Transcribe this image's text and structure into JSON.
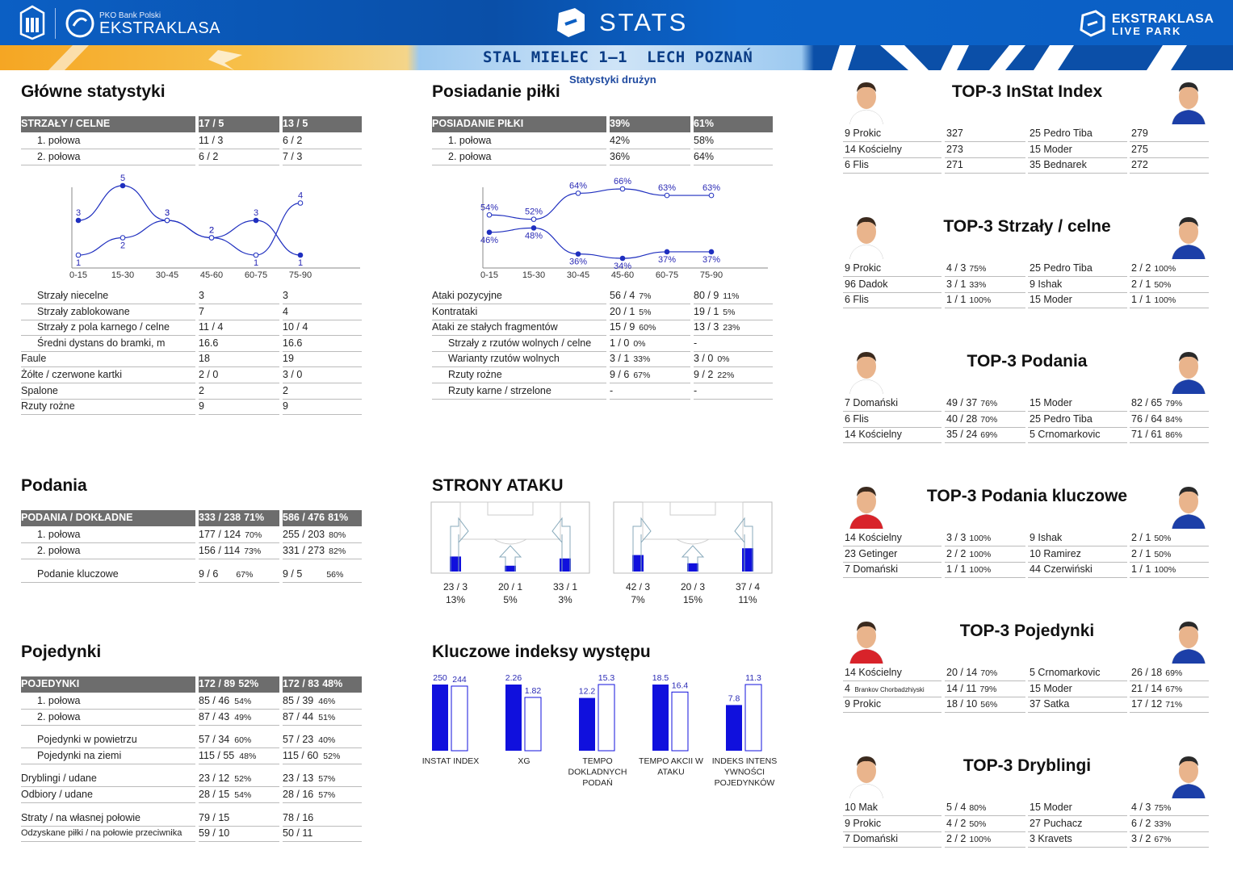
{
  "header": {
    "sponsor": "PKO Bank Polski",
    "league": "EKSTRAKLASA",
    "stats": "STATS",
    "live1": "EKSTRAKLASA",
    "live2": "LIVE PARK",
    "match": "STAL MIELEC 1–1  LECH POZNAŃ",
    "subtitle": "Statystyki drużyn"
  },
  "colors": {
    "accent": "#0b5fc4",
    "series": "#0000cc",
    "header_cell": "#6d6d6d"
  },
  "glowne": {
    "title": "Główne statystyki",
    "head": [
      "STRZAŁY / CELNE",
      "17 / 5",
      "13 / 5"
    ],
    "halves": [
      [
        "1. połowa",
        "11 / 3",
        "6 / 2"
      ],
      [
        "2. połowa",
        "6 / 2",
        "7 / 3"
      ]
    ],
    "rows": [
      [
        "Strzały niecelne",
        "3",
        "3",
        true
      ],
      [
        "Strzały zablokowane",
        "7",
        "4",
        true
      ],
      [
        "Strzały z pola karnego / celne",
        "11 / 4",
        "10 / 4",
        true
      ],
      [
        "Średni dystans do bramki, m",
        "16.6",
        "16.6",
        true
      ],
      [
        "Faule",
        "18",
        "19",
        false
      ],
      [
        "Żółte / czerwone kartki",
        "2 / 0",
        "3 / 0",
        false
      ],
      [
        "Spalone",
        "2",
        "2",
        false
      ],
      [
        "Rzuty rożne",
        "9",
        "9",
        false
      ]
    ]
  },
  "posiadanie": {
    "title": "Posiadanie piłki",
    "head": [
      "POSIADANIE PIŁKI",
      "39%",
      "61%"
    ],
    "halves": [
      [
        "1. połowa",
        "42%",
        "58%"
      ],
      [
        "2. połowa",
        "36%",
        "64%"
      ]
    ],
    "rows": [
      [
        "Ataki pozycyjne",
        "56 / 4",
        "7%",
        "80 / 9",
        "11%",
        false
      ],
      [
        "Kontrataki",
        "20 / 1",
        "5%",
        "19 / 1",
        "5%",
        false
      ],
      [
        "Ataki ze stałych fragmentów",
        "15 / 9",
        "60%",
        "13 / 3",
        "23%",
        false
      ],
      [
        "Strzały z rzutów wolnych / celne",
        "1 / 0",
        "0%",
        "-",
        "",
        true
      ],
      [
        "Warianty rzutów wolnych",
        "3 / 1",
        "33%",
        "3 / 0",
        "0%",
        true
      ],
      [
        "Rzuty rożne",
        "9 / 6",
        "67%",
        "9 / 2",
        "22%",
        true
      ],
      [
        "Rzuty karne / strzelone",
        "-",
        "",
        "-",
        "",
        true
      ]
    ]
  },
  "podania": {
    "title": "Podania",
    "head": [
      "PODANIA / DOKŁADNE",
      "333 / 238",
      "71%",
      "586 / 476",
      "81%"
    ],
    "rows": [
      [
        "1. połowa",
        "177 / 124",
        "70%",
        "255 / 203",
        "80%"
      ],
      [
        "2. połowa",
        "156 / 114",
        "73%",
        "331 / 273",
        "82%"
      ]
    ],
    "key": [
      "Podanie kluczowe",
      "9 / 6",
      "67%",
      "9 / 5",
      "56%"
    ]
  },
  "pojedynki": {
    "title": "Pojedynki",
    "head": [
      "POJEDYNKI",
      "172 / 89",
      "52%",
      "172 / 83",
      "48%"
    ],
    "rows": [
      [
        "1. połowa",
        "85 / 46",
        "54%",
        "85 / 39",
        "46%",
        true,
        0
      ],
      [
        "2. połowa",
        "87 / 43",
        "49%",
        "87 / 44",
        "51%",
        true,
        0
      ],
      [
        "Pojedynki w powietrzu",
        "57 / 34",
        "60%",
        "57 / 23",
        "40%",
        true,
        9
      ],
      [
        "Pojedynki na ziemi",
        "115 / 55",
        "48%",
        "115 / 60",
        "52%",
        true,
        9
      ],
      [
        "Dryblingi / udane",
        "23 / 12",
        "52%",
        "23 / 13",
        "57%",
        false,
        18
      ],
      [
        "Odbiory / udane",
        "28 / 15",
        "54%",
        "28 / 16",
        "57%",
        false,
        18
      ],
      [
        "Straty / na własnej połowie",
        "79 / 15",
        "",
        "78 / 16",
        "",
        false,
        27
      ],
      [
        "Odzyskane piłki / na połowie przeciwnika",
        "59 / 10",
        "",
        "50 / 11",
        "",
        false,
        27
      ]
    ]
  },
  "strony": {
    "title": "STRONY ATAKU",
    "home": [
      {
        "v": "23 / 3",
        "p": "13%",
        "fill": 0.31
      },
      {
        "v": "20 / 1",
        "p": "5%",
        "fill": 0.12
      },
      {
        "v": "33 / 1",
        "p": "3%",
        "fill": 0.27
      }
    ],
    "away": [
      {
        "v": "42 / 3",
        "p": "7%",
        "fill": 0.34
      },
      {
        "v": "20 / 3",
        "p": "15%",
        "fill": 0.17
      },
      {
        "v": "37 / 4",
        "p": "11%",
        "fill": 0.48
      }
    ]
  },
  "kluczowe": {
    "title": "Kluczowe indeksy występu"
  },
  "chart_data": [
    {
      "type": "line",
      "x": [
        "0-15",
        "15-30",
        "30-45",
        "45-60",
        "60-75",
        "75-90"
      ],
      "series": [
        {
          "values": [
            3,
            5,
            3,
            2,
            3,
            1
          ]
        },
        {
          "values": [
            1,
            2,
            3,
            2,
            1,
            4
          ]
        }
      ],
      "ylim": [
        1,
        5
      ]
    },
    {
      "type": "line",
      "x": [
        "0-15",
        "15-30",
        "30-45",
        "45-60",
        "60-75",
        "75-90"
      ],
      "series": [
        {
          "values": [
            46,
            48,
            36,
            34,
            37,
            37
          ]
        },
        {
          "values": [
            54,
            52,
            64,
            66,
            63,
            63
          ]
        }
      ],
      "ylim": [
        34,
        66
      ]
    },
    {
      "type": "bar",
      "categories": [
        "INSTAT INDEX",
        "XG",
        "TEMPO DOKLADNYCH PODAŃ",
        "TEMPO AKCII W ATAKU",
        "INDEKS INTENSYWNOŚCI POJEDYNKÓW"
      ],
      "cat_lines": [
        [
          "INSTAT INDEX"
        ],
        [
          "XG"
        ],
        [
          "TEMPO",
          "DOKLADNYCH",
          "PODAŃ"
        ],
        [
          "TEMPO AKCII W",
          "ATAKU"
        ],
        [
          "INDEKS INTENS",
          "YWNOŚCI",
          "POJEDYNKÓW"
        ]
      ],
      "series": [
        {
          "values": [
            "250",
            "2.26",
            "12.2",
            "18.5",
            "7.8"
          ]
        },
        {
          "values": [
            "244",
            "1.82",
            "15.3",
            "16.4",
            "11.3"
          ]
        }
      ]
    }
  ],
  "top3": [
    {
      "title": "TOP-3 InStat Index",
      "rows": [
        [
          "9  Prokic",
          "327",
          "",
          "25 Pedro Tiba",
          "279",
          ""
        ],
        [
          "14 Kościelny",
          "273",
          "",
          "15 Moder",
          "275",
          ""
        ],
        [
          "6  Flis",
          "271",
          "",
          "35 Bednarek",
          "272",
          ""
        ]
      ]
    },
    {
      "title": "TOP-3 Strzały / celne",
      "rows": [
        [
          "9  Prokic",
          "4 / 3",
          "75%",
          "25 Pedro Tiba",
          "2 / 2",
          "100%"
        ],
        [
          "96 Dadok",
          "3 / 1",
          "33%",
          "9  Ishak",
          "2 / 1",
          "50%"
        ],
        [
          "6  Flis",
          "1 / 1",
          "100%",
          "15 Moder",
          "1 / 1",
          "100%"
        ]
      ]
    },
    {
      "title": "TOP-3 Podania",
      "rows": [
        [
          "7  Domański",
          "49 / 37",
          "76%",
          "15 Moder",
          "82 / 65",
          "79%"
        ],
        [
          "6  Flis",
          "40 / 28",
          "70%",
          "25 Pedro Tiba",
          "76 / 64",
          "84%"
        ],
        [
          "14 Kościelny",
          "35 / 24",
          "69%",
          "5  Crnomarkovic",
          "71 / 61",
          "86%"
        ]
      ]
    },
    {
      "title": "TOP-3 Podania kluczowe",
      "rows": [
        [
          "14 Kościelny",
          "3 / 3",
          "100%",
          "9  Ishak",
          "2 / 1",
          "50%"
        ],
        [
          "23 Getinger",
          "2 / 2",
          "100%",
          "10 Ramirez",
          "2 / 1",
          "50%"
        ],
        [
          "7  Domański",
          "1 / 1",
          "100%",
          "44 Czerwiński",
          "1 / 1",
          "100%"
        ]
      ]
    },
    {
      "title": "TOP-3 Pojedynki",
      "rows": [
        [
          "14 Kościelny",
          "20 / 14",
          "70%",
          "5  Crnomarkovic",
          "26 / 18",
          "69%"
        ],
        [
          "4  |Brankov Chorbadzhiyski",
          "14 / 11",
          "79%",
          "15 Moder",
          "21 / 14",
          "67%"
        ],
        [
          "9  Prokic",
          "18 / 10",
          "56%",
          "37 Satka",
          "17 / 12",
          "71%"
        ]
      ]
    },
    {
      "title": "TOP-3 Dryblingi",
      "rows": [
        [
          "10 Mak",
          "5 / 4",
          "80%",
          "15 Moder",
          "4 / 3",
          "75%"
        ],
        [
          "9  Prokic",
          "4 / 2",
          "50%",
          "27 Puchacz",
          "6 / 2",
          "33%"
        ],
        [
          "7  Domański",
          "2 / 2",
          "100%",
          "3  Kravets",
          "3 / 2",
          "67%"
        ]
      ]
    }
  ]
}
